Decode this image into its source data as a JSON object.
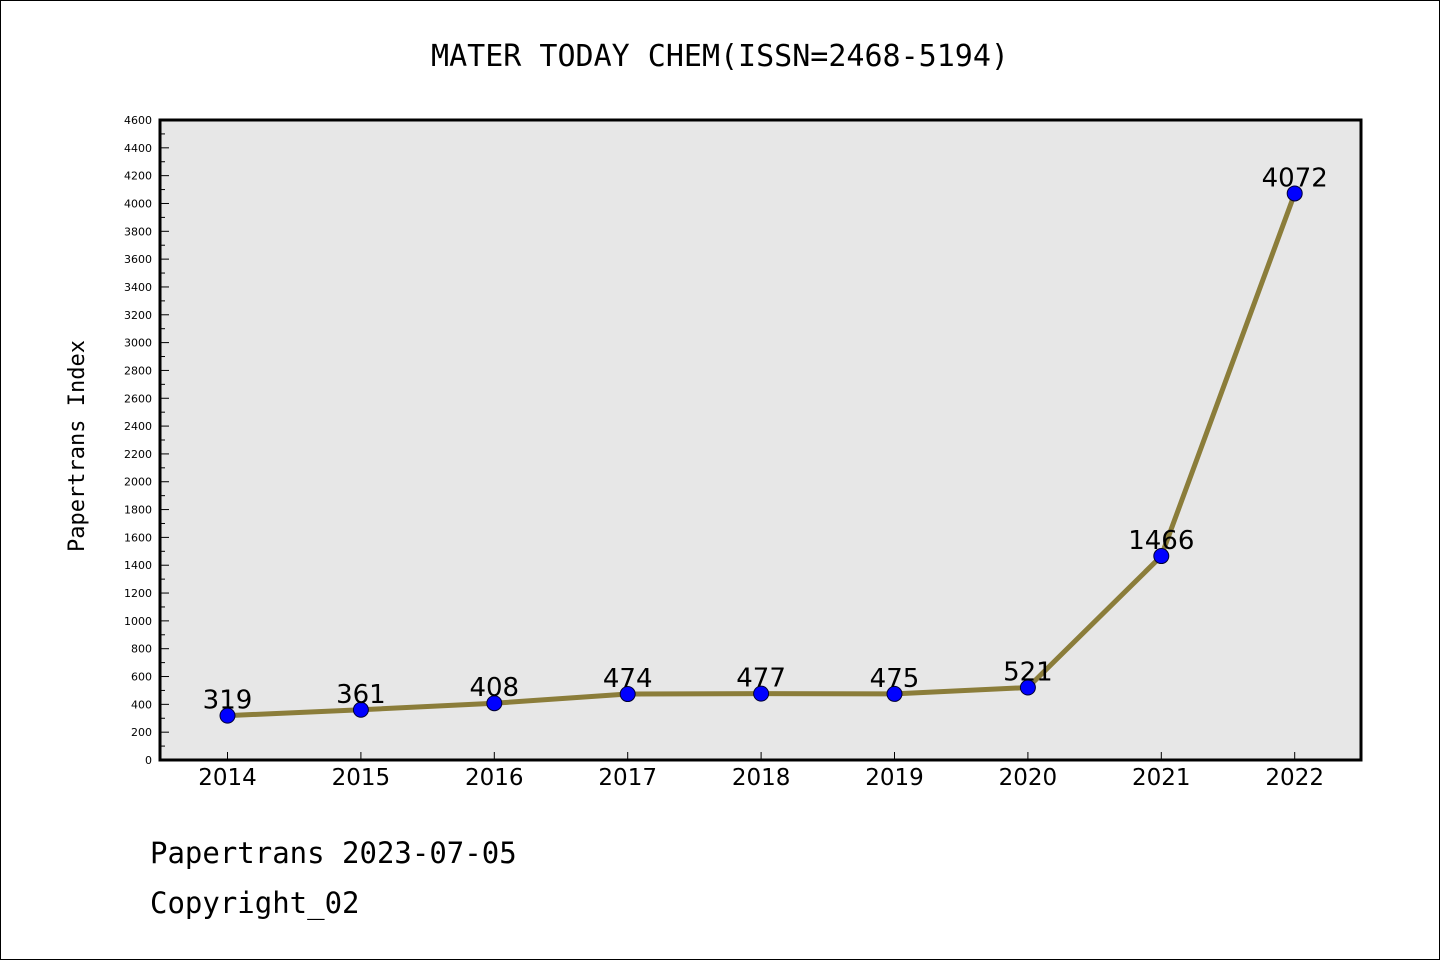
{
  "chart_data": {
    "type": "line",
    "title": "MATER TODAY CHEM(ISSN=2468-5194)",
    "xlabel": "",
    "ylabel": "Papertrans Index",
    "categories": [
      "2014",
      "2015",
      "2016",
      "2017",
      "2018",
      "2019",
      "2020",
      "2021",
      "2022"
    ],
    "series": [
      {
        "values": [
          319,
          361,
          408,
          474,
          477,
          475,
          521,
          1466,
          4072
        ]
      }
    ],
    "ylim": [
      0,
      4600
    ],
    "yticks": [
      0,
      200,
      400,
      600,
      800,
      1000,
      1200,
      1400,
      1600,
      1800,
      2000,
      2200,
      2400,
      2600,
      2800,
      3000,
      3200,
      3400,
      3600,
      3800,
      4000,
      4200,
      4400,
      4600
    ],
    "grid": false,
    "legend": "none",
    "line_color": "#8b7d3a",
    "marker_color": "#0000ff",
    "plot_background": "#e7e7e7"
  },
  "footer": {
    "date_text": "Papertrans 2023-07-05",
    "copyright": "Copyright_02"
  }
}
